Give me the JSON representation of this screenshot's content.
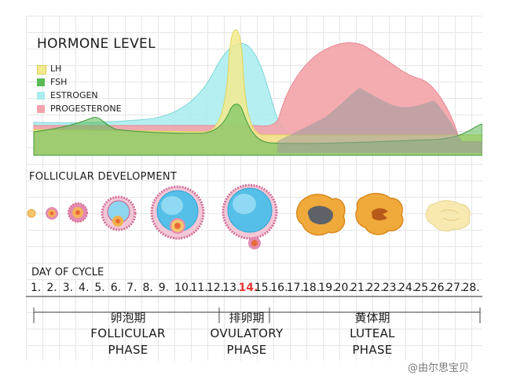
{
  "hormone_chart": {
    "title": "HORMONE LEVEL",
    "legend": [
      {
        "label": "LH",
        "color": "#f3ea8d"
      },
      {
        "label": "FSH",
        "color": "#5aba55"
      },
      {
        "label": "ESTROGEN",
        "color": "#a8ecee"
      },
      {
        "label": "PROGESTERONE",
        "color": "#f3a3a9"
      }
    ]
  },
  "follicular_development": {
    "title": "FOLLICULAR DEVELOPMENT"
  },
  "cycle": {
    "title": "DAY OF CYCLE",
    "days": [
      "1.",
      "2.",
      "3.",
      "4.",
      "5.",
      "6.",
      "7.",
      "8.",
      "9.",
      "10.",
      "11.",
      "12.",
      "13.",
      "14.",
      "15.",
      "16.",
      "17.",
      "18.",
      "19.",
      "20.",
      "21.",
      "22.",
      "23.",
      "24.",
      "25.",
      "26.",
      "27.",
      "28."
    ],
    "highlight_day": "14.",
    "highlight_color": "#e53935"
  },
  "phases": {
    "follicular": {
      "cn": "卵泡期",
      "en1": "FOLLICULAR",
      "en2": "PHASE"
    },
    "ovulatory": {
      "cn": "排卵期",
      "en1": "OVULATORY",
      "en2": "PHASE"
    },
    "luteal": {
      "cn": "黄体期",
      "en1": "LUTEAL",
      "en2": "PHASE"
    }
  },
  "watermark": "@由尔思宝贝"
}
